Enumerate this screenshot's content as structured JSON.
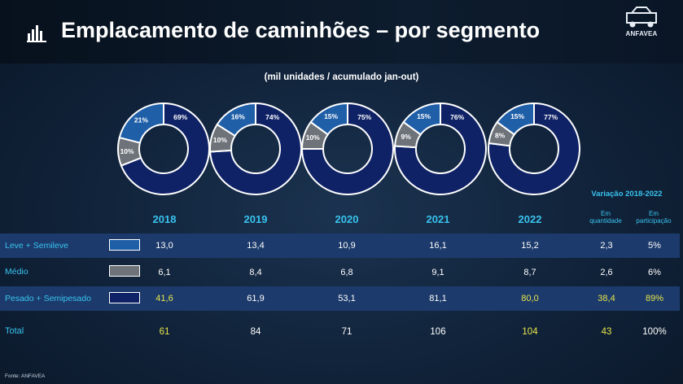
{
  "header": {
    "title": "Emplacamento de caminhões – por segmento",
    "logo_text": "ANFAVEA"
  },
  "subtitle": "(mil unidades / acumulado jan-out)",
  "colors": {
    "leve": "#1f5fa8",
    "medio": "#6e737a",
    "pesado": "#0f2266",
    "accent": "#39c3ef",
    "highlight": "#e6e64a"
  },
  "chart_data": {
    "type": "pie",
    "title": "Emplacamento de caminhões – por segmento",
    "subtitle": "(mil unidades / acumulado jan-out)",
    "categories": [
      "2018",
      "2019",
      "2020",
      "2021",
      "2022"
    ],
    "series": [
      {
        "name": "Leve + Semileve",
        "share_labels": [
          "21%",
          "16%",
          "15%",
          "15%",
          "15%"
        ],
        "shares": [
          21,
          16,
          15,
          15,
          15
        ],
        "values": [
          "13,0",
          "13,4",
          "10,9",
          "16,1",
          "15,2"
        ]
      },
      {
        "name": "Médio",
        "share_labels": [
          "10%",
          "10%",
          "10%",
          "9%",
          "8%"
        ],
        "shares": [
          10,
          10,
          10,
          9,
          8
        ],
        "values": [
          "6,1",
          "8,4",
          "6,8",
          "9,1",
          "8,7"
        ]
      },
      {
        "name": "Pesado + Semipesado",
        "share_labels": [
          "69%",
          "74%",
          "75%",
          "76%",
          "77%"
        ],
        "shares": [
          69,
          74,
          75,
          76,
          77
        ],
        "values": [
          "41,6",
          "61,9",
          "53,1",
          "81,1",
          "80,0"
        ]
      }
    ]
  },
  "table": {
    "variation_header": "Variação 2018-2022",
    "col_qty": "Em quantidade",
    "col_share": "Em participação",
    "years": [
      "2018",
      "2019",
      "2020",
      "2021",
      "2022"
    ],
    "rows": [
      {
        "label": "Leve + Semileve",
        "values": [
          "13,0",
          "13,4",
          "10,9",
          "16,1",
          "15,2"
        ],
        "var_qty": "2,3",
        "var_share": "5%"
      },
      {
        "label": "Médio",
        "values": [
          "6,1",
          "8,4",
          "6,8",
          "9,1",
          "8,7"
        ],
        "var_qty": "2,6",
        "var_share": "6%"
      },
      {
        "label": "Pesado + Semipesado",
        "values": [
          "41,6",
          "61,9",
          "53,1",
          "81,1",
          "80,0"
        ],
        "var_qty": "38,4",
        "var_share": "89%"
      }
    ],
    "total": {
      "label": "Total",
      "values": [
        "61",
        "84",
        "71",
        "106",
        "104"
      ],
      "var_qty": "43",
      "var_share": "100%"
    }
  },
  "source": "Fonte: ANFAVEA"
}
